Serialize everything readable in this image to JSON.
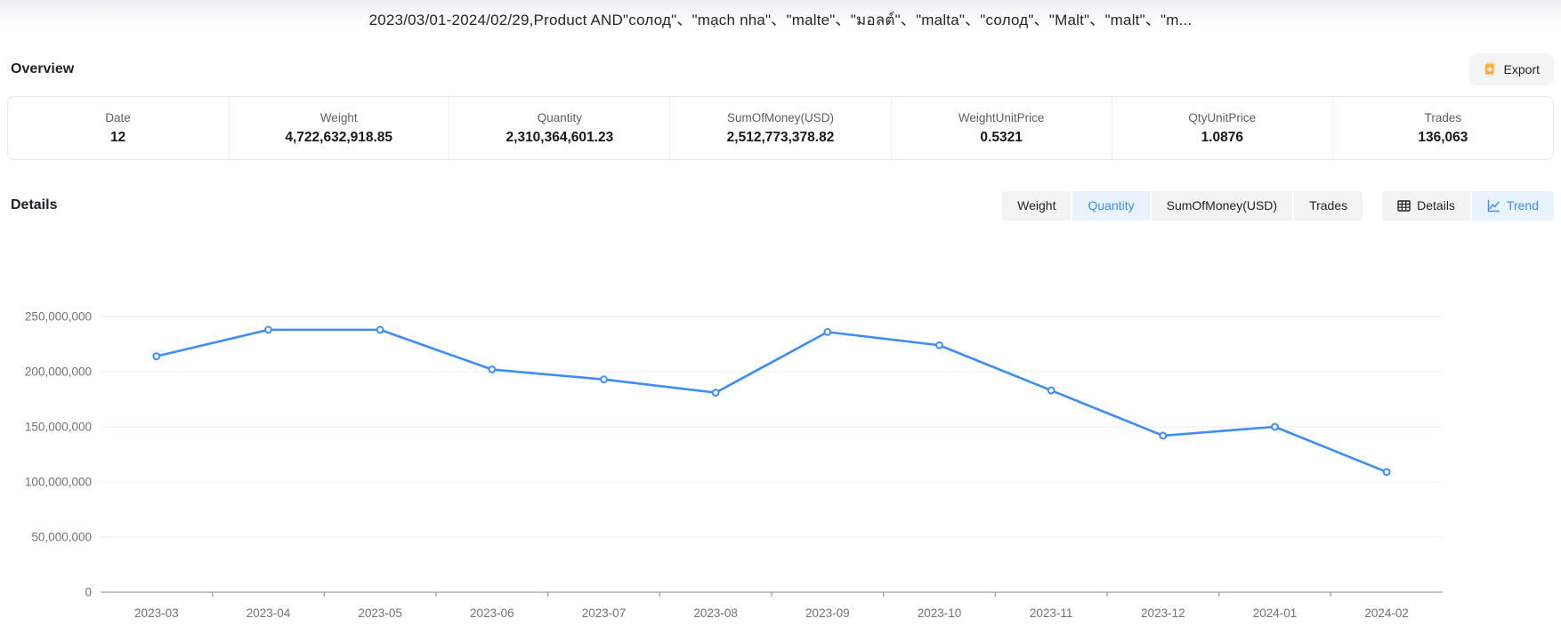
{
  "title_bar": {
    "title": "2023/03/01-2024/02/29,Product AND\"солод\"、\"mạch nha\"、\"malte\"、\"มอลต์\"、\"malta\"、\"солод\"、\"Malt\"、\"malt\"、\"m..."
  },
  "overview": {
    "heading": "Overview",
    "export_label": "Export",
    "stats": [
      {
        "label": "Date",
        "value": "12"
      },
      {
        "label": "Weight",
        "value": "4,722,632,918.85"
      },
      {
        "label": "Quantity",
        "value": "2,310,364,601.23"
      },
      {
        "label": "SumOfMoney(USD)",
        "value": "2,512,773,378.82"
      },
      {
        "label": "WeightUnitPrice",
        "value": "0.5321"
      },
      {
        "label": "QtyUnitPrice",
        "value": "1.0876"
      },
      {
        "label": "Trades",
        "value": "136,063"
      }
    ]
  },
  "details": {
    "heading": "Details",
    "metric_tabs": [
      {
        "label": "Weight",
        "active": false
      },
      {
        "label": "Quantity",
        "active": true
      },
      {
        "label": "SumOfMoney(USD)",
        "active": false
      },
      {
        "label": "Trades",
        "active": false
      }
    ],
    "view_tabs": [
      {
        "label": "Details",
        "icon": "table-icon",
        "active": false
      },
      {
        "label": "Trend",
        "icon": "trend-icon",
        "active": true
      }
    ]
  },
  "colors": {
    "accent_blue": "#3e8ef5",
    "active_tab_bg": "#e8f3fe",
    "inactive_tab_bg": "#f2f3f5",
    "export_icon_orange": "#ffa940",
    "gridline": "#e9edf5",
    "axis_line": "#9ca1a8",
    "axis_text": "#6e7479"
  },
  "chart_data": {
    "type": "line",
    "title": "",
    "xlabel": "",
    "ylabel": "",
    "categories": [
      "2023-03",
      "2023-04",
      "2023-05",
      "2023-06",
      "2023-07",
      "2023-08",
      "2023-09",
      "2023-10",
      "2023-11",
      "2023-12",
      "2024-01",
      "2024-02"
    ],
    "series": [
      {
        "name": "Quantity",
        "values": [
          214000000,
          238000000,
          238000000,
          202000000,
          193000000,
          181000000,
          236000000,
          224000000,
          183000000,
          142000000,
          150000000,
          109000000
        ]
      }
    ],
    "ylim": [
      0,
      250000000
    ],
    "ytick_step": 50000000,
    "grid": true,
    "legend_position": "none",
    "line_color": "#3e8ef5",
    "point_style": "hollow-circle"
  }
}
